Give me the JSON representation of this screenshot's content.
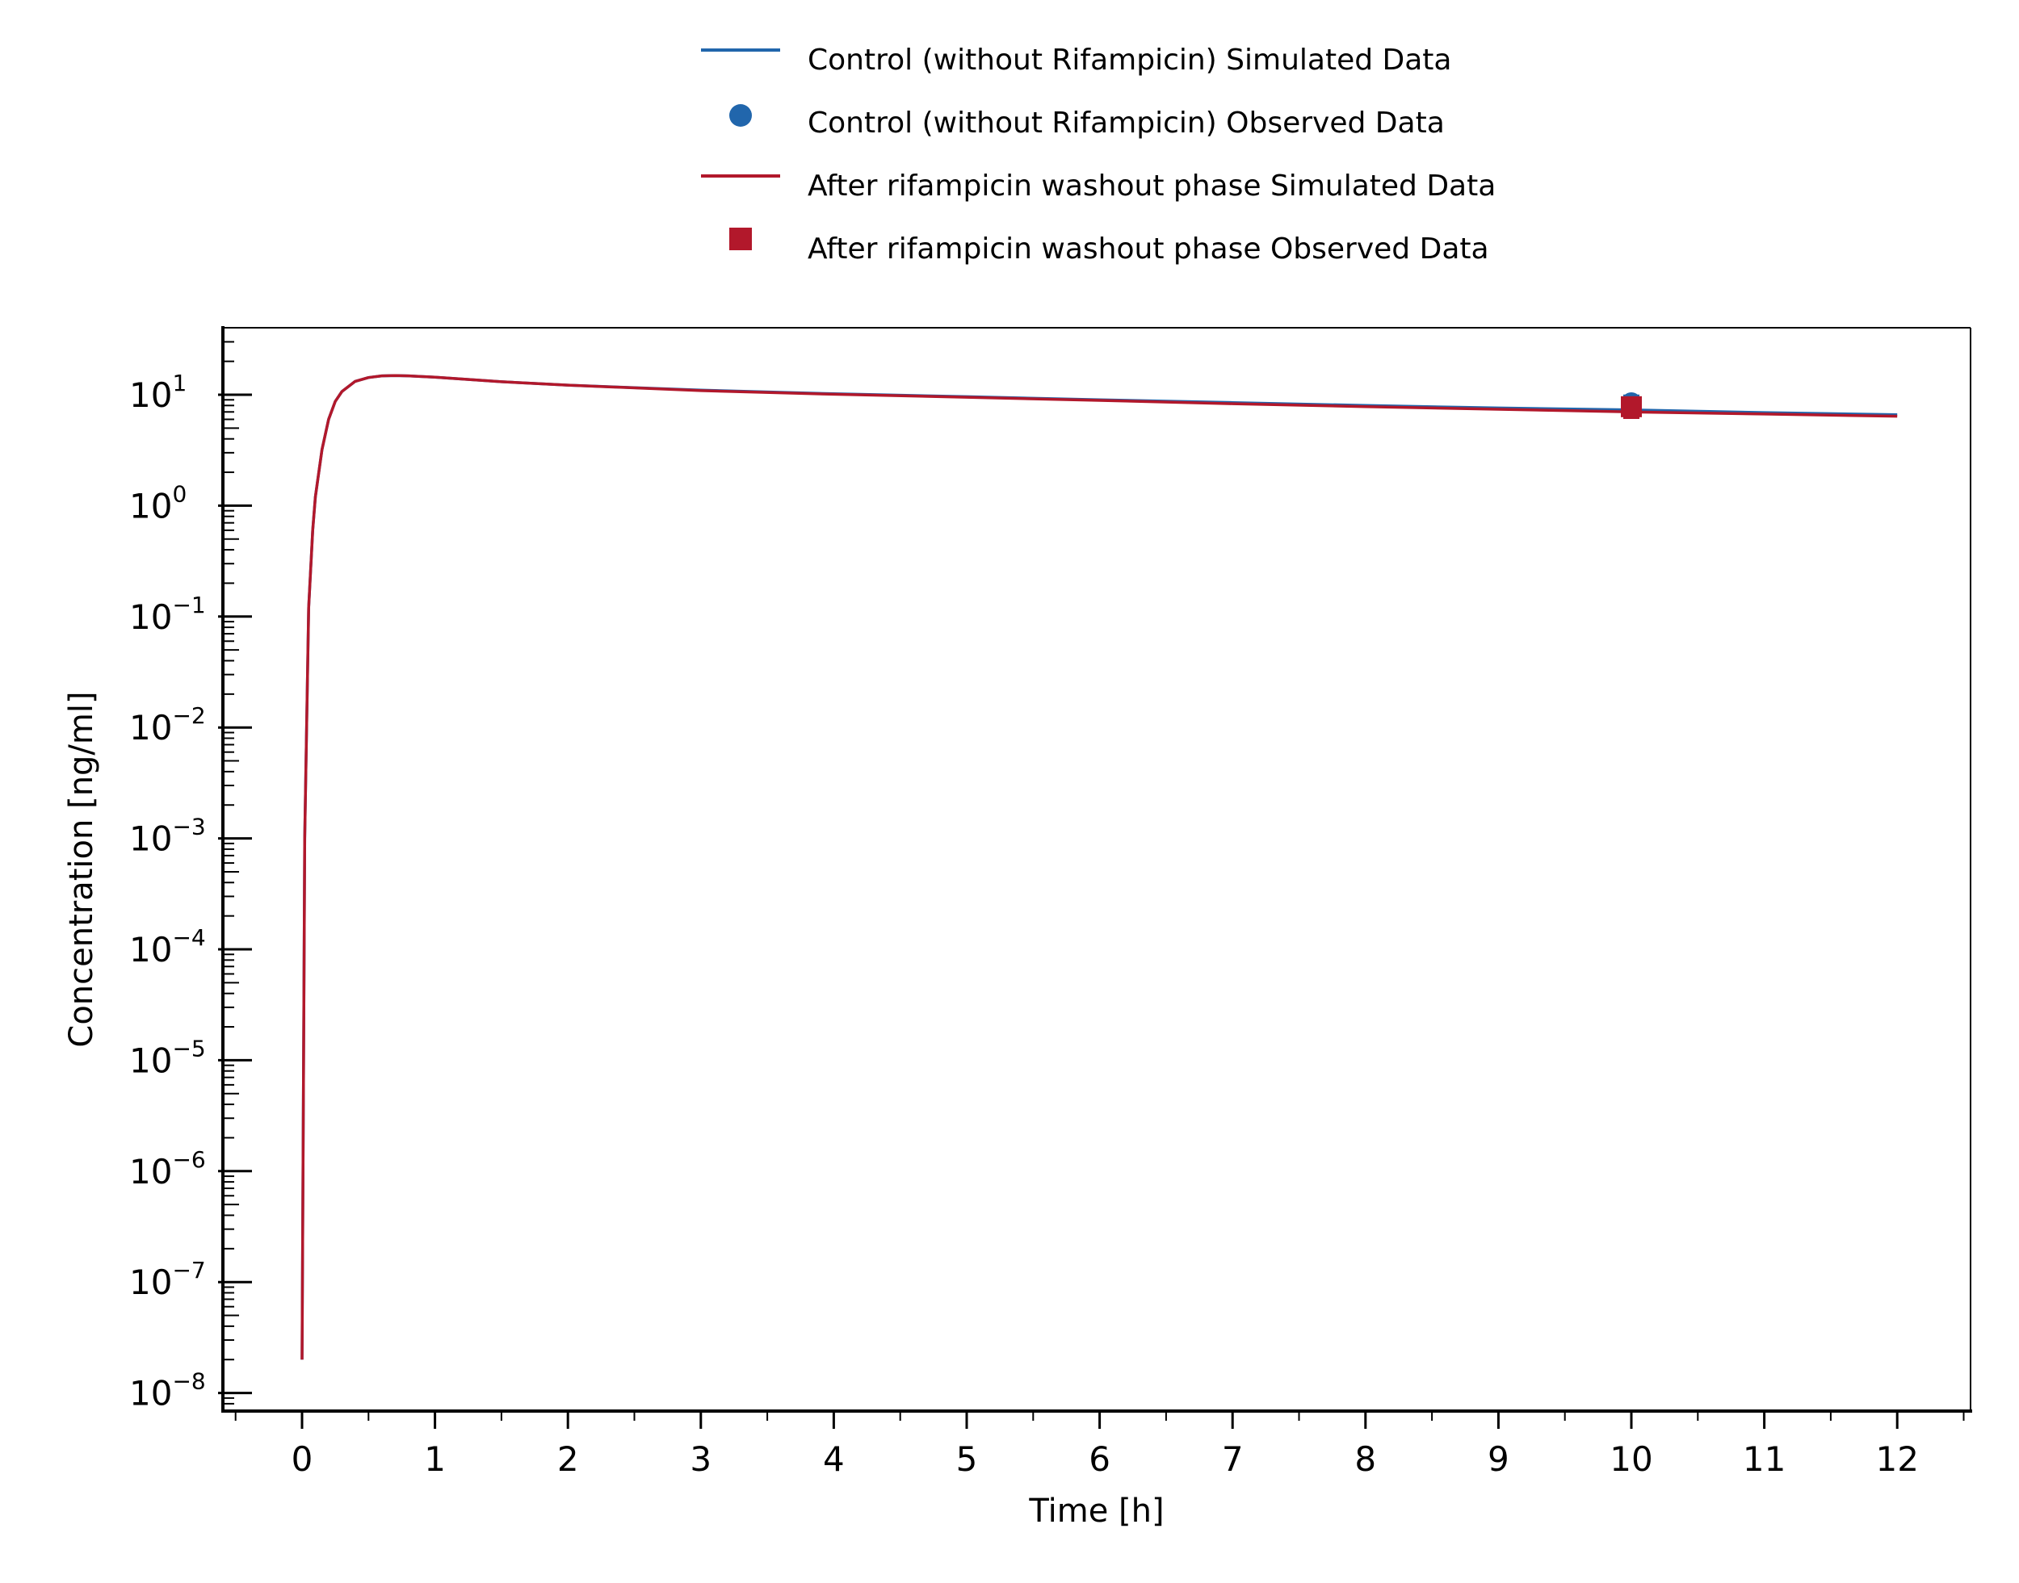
{
  "chart_data": {
    "type": "line",
    "xlabel": "Time [h]",
    "ylabel": "Concentration [ng/ml]",
    "y_scale": "log",
    "xlim": [
      -0.6,
      12.6
    ],
    "ylim": [
      1e-08,
      40
    ],
    "x_ticks": [
      0,
      1,
      2,
      3,
      4,
      5,
      6,
      7,
      8,
      9,
      10,
      11,
      12
    ],
    "x_tick_labels": [
      "0",
      "1",
      "2",
      "3",
      "4",
      "5",
      "6",
      "7",
      "8",
      "9",
      "10",
      "11",
      "12"
    ],
    "y_ticks": [
      {
        "value": 10,
        "base": "10",
        "exp": "1"
      },
      {
        "value": 1,
        "base": "10",
        "exp": "0"
      },
      {
        "value": 0.1,
        "base": "10",
        "exp": "−1"
      },
      {
        "value": 0.01,
        "base": "10",
        "exp": "−2"
      },
      {
        "value": 0.001,
        "base": "10",
        "exp": "−3"
      },
      {
        "value": 0.0001,
        "base": "10",
        "exp": "−4"
      },
      {
        "value": 1e-05,
        "base": "10",
        "exp": "−5"
      },
      {
        "value": 1e-06,
        "base": "10",
        "exp": "−6"
      },
      {
        "value": 1e-07,
        "base": "10",
        "exp": "−7"
      },
      {
        "value": 1e-08,
        "base": "10",
        "exp": "−8"
      }
    ],
    "legend_position": "top-center",
    "grid": false,
    "series": [
      {
        "name": "Control (without Rifampicin) Simulated Data",
        "kind": "line",
        "color": "#2166ac",
        "x": [
          0,
          0.02,
          0.05,
          0.08,
          0.1,
          0.15,
          0.2,
          0.25,
          0.3,
          0.4,
          0.5,
          0.6,
          0.7,
          0.8,
          1.0,
          1.5,
          2,
          3,
          4,
          5,
          6,
          7,
          8,
          9,
          10,
          11,
          12
        ],
        "y": [
          2e-08,
          0.001,
          0.12,
          0.6,
          1.2,
          3.2,
          6.0,
          8.7,
          10.7,
          13.2,
          14.3,
          14.8,
          14.9,
          14.8,
          14.4,
          13.1,
          12.2,
          11.0,
          10.2,
          9.6,
          9.0,
          8.5,
          8.0,
          7.6,
          7.3,
          6.9,
          6.6
        ]
      },
      {
        "name": "Control (without Rifampicin) Observed Data",
        "kind": "points",
        "marker": "circle",
        "color": "#2166ac",
        "x": [
          10
        ],
        "y": [
          8.6
        ],
        "err_low": [
          7.3
        ],
        "err_high": [
          9.8
        ]
      },
      {
        "name": "After rifampicin washout phase Simulated Data",
        "kind": "line",
        "color": "#b2182b",
        "x": [
          0,
          0.02,
          0.05,
          0.08,
          0.1,
          0.15,
          0.2,
          0.25,
          0.3,
          0.4,
          0.5,
          0.6,
          0.7,
          0.8,
          1.0,
          1.5,
          2,
          3,
          4,
          5,
          6,
          7,
          8,
          9,
          10,
          11,
          12
        ],
        "y": [
          2e-08,
          0.001,
          0.12,
          0.6,
          1.2,
          3.2,
          6.0,
          8.7,
          10.7,
          13.2,
          14.3,
          14.8,
          14.9,
          14.8,
          14.4,
          13.1,
          12.2,
          10.9,
          10.1,
          9.5,
          8.9,
          8.3,
          7.8,
          7.4,
          7.0,
          6.7,
          6.4
        ]
      },
      {
        "name": "After rifampicin washout phase Observed Data",
        "kind": "points",
        "marker": "square",
        "color": "#b2182b",
        "x": [
          10
        ],
        "y": [
          7.8
        ],
        "err_low": [
          6.2
        ],
        "err_high": [
          9.2
        ]
      }
    ]
  }
}
